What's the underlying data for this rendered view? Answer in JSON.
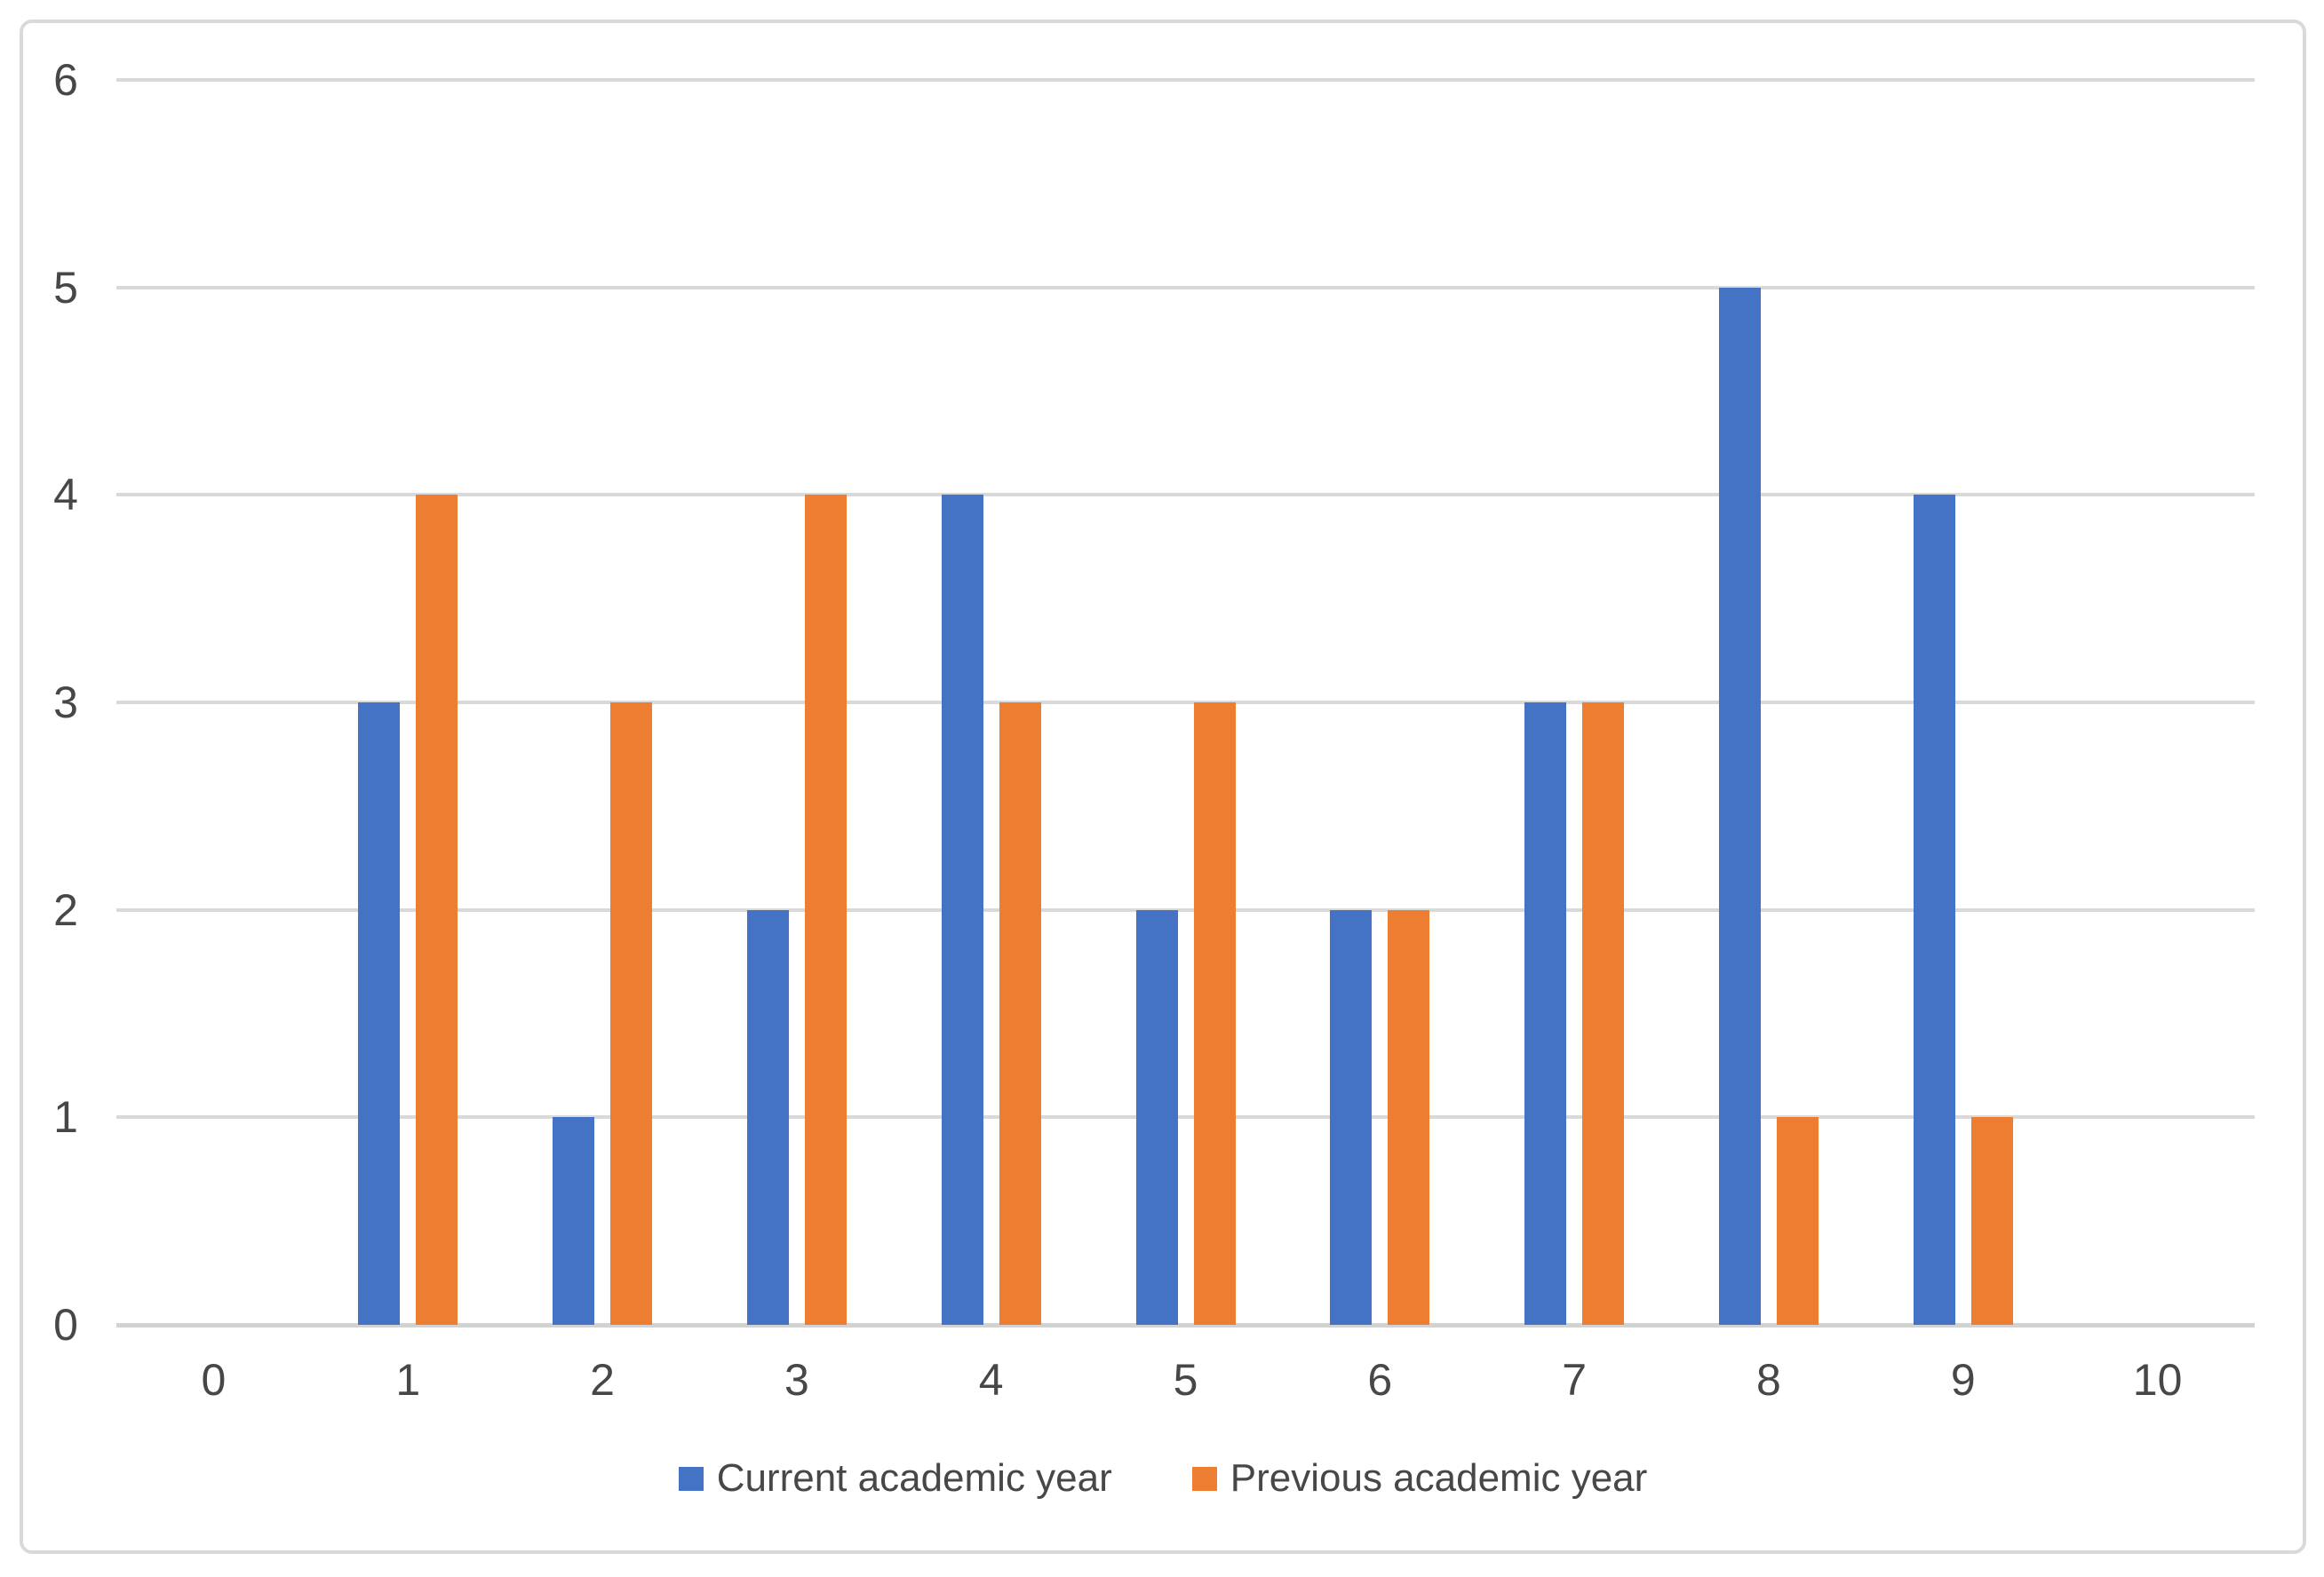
{
  "chart_data": {
    "type": "bar",
    "title": "",
    "xlabel": "",
    "ylabel": "",
    "categories": [
      "0",
      "1",
      "2",
      "3",
      "4",
      "5",
      "6",
      "7",
      "8",
      "9",
      "10"
    ],
    "series": [
      {
        "name": "Current academic year",
        "color": "#4472C4",
        "values": [
          0,
          3,
          1,
          2,
          4,
          2,
          2,
          3,
          5,
          4,
          0
        ]
      },
      {
        "name": "Previous academic year",
        "color": "#ED7D31",
        "values": [
          0,
          4,
          3,
          4,
          3,
          3,
          2,
          3,
          1,
          1,
          0
        ]
      }
    ],
    "ylim": [
      0,
      6
    ],
    "yticks": [
      0,
      1,
      2,
      3,
      4,
      5,
      6
    ],
    "grid": "horizontal",
    "gridline_color": "#D9D9D9",
    "axis_line_color": "#D2D2D2",
    "tick_label_color": "#474747",
    "legend_position": "bottom",
    "background_color": "#FFFFFF",
    "border_color": "#D9D9D9"
  }
}
